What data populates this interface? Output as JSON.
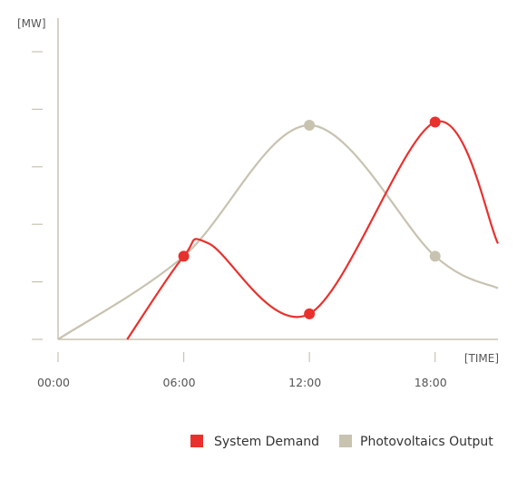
{
  "chart_data": {
    "type": "line",
    "title": "",
    "xlabel": "[TIME]",
    "ylabel": "[MW]",
    "x_ticks": [
      "00:00",
      "06:00",
      "12:00",
      "18:00"
    ],
    "x_tick_hours": [
      0,
      6,
      12,
      18
    ],
    "xlim": [
      0,
      21
    ],
    "ylim": [
      0,
      4.5
    ],
    "y_tick_count": 5,
    "legend_position": "bottom-right",
    "series": [
      {
        "name": "System Demand",
        "color": "#e8312d",
        "x": [
          3.3,
          6,
          7.2,
          12,
          18,
          21
        ],
        "y": [
          0,
          1.3,
          1.5,
          0.4,
          3.4,
          1.5
        ],
        "markers": [
          {
            "x": 6,
            "y": 1.3
          },
          {
            "x": 12,
            "y": 0.4
          },
          {
            "x": 18,
            "y": 3.4
          }
        ]
      },
      {
        "name": "Photovoltaics Output",
        "color": "#c8c3b0",
        "x": [
          0,
          6,
          12,
          18,
          21
        ],
        "y": [
          0,
          1.3,
          3.35,
          1.3,
          0.8
        ],
        "markers": [
          {
            "x": 12,
            "y": 3.35
          },
          {
            "x": 18,
            "y": 1.3
          }
        ]
      }
    ]
  }
}
